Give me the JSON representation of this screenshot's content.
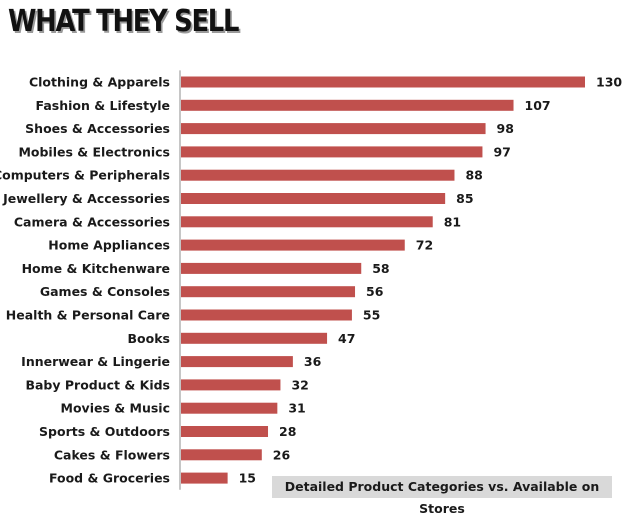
{
  "chart_data": {
    "type": "bar",
    "orientation": "horizontal",
    "title": "WHAT THEY SELL",
    "footnote": "Detailed Product Categories vs. Available on Stores",
    "categories": [
      "Clothing & Apparels",
      "Fashion & Lifestyle",
      "Shoes & Accessories",
      "Mobiles & Electronics",
      "Computers & Peripherals",
      "Jewellery & Accessories",
      "Camera & Accessories",
      "Home Appliances",
      "Home & Kitchenware",
      "Games & Consoles",
      "Health & Personal Care",
      "Books",
      "Innerwear & Lingerie",
      "Baby Product & Kids",
      "Movies & Music",
      "Sports & Outdoors",
      "Cakes & Flowers",
      "Food & Groceries"
    ],
    "values": [
      130,
      107,
      98,
      97,
      88,
      85,
      81,
      72,
      58,
      56,
      55,
      47,
      36,
      32,
      31,
      28,
      26,
      15
    ],
    "bar_color": "#c0504d",
    "axis_color": "#8c8c8c",
    "xlim": [
      0,
      130
    ],
    "grid": false,
    "legend": "none"
  }
}
